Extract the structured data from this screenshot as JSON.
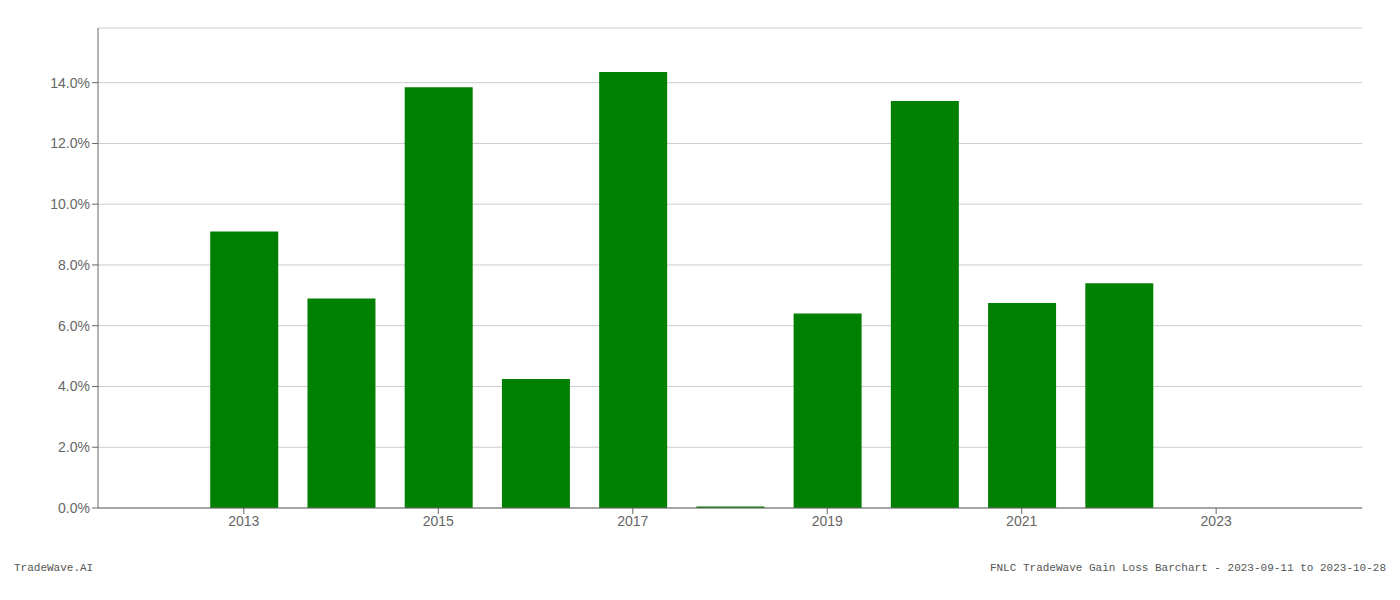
{
  "chart_data": {
    "type": "bar",
    "x": [
      2013,
      2014,
      2015,
      2016,
      2017,
      2018,
      2019,
      2020,
      2021,
      2022,
      2023
    ],
    "values": [
      0.091,
      0.069,
      0.1385,
      0.0425,
      0.1435,
      0.0005,
      0.064,
      0.134,
      0.0675,
      0.074,
      0.0
    ],
    "color": "#008000",
    "xlim": [
      2011.5,
      2024.5
    ],
    "xticks": [
      2013,
      2015,
      2017,
      2019,
      2021,
      2023
    ],
    "ylim": [
      0.0,
      0.158
    ],
    "yticks": [
      {
        "value": 0.0,
        "label": "0.0%"
      },
      {
        "value": 0.02,
        "label": "2.0%"
      },
      {
        "value": 0.04,
        "label": "4.0%"
      },
      {
        "value": 0.06,
        "label": "6.0%"
      },
      {
        "value": 0.08,
        "label": "8.0%"
      },
      {
        "value": 0.1,
        "label": "10.0%"
      },
      {
        "value": 0.12,
        "label": "12.0%"
      },
      {
        "value": 0.14,
        "label": "14.0%"
      }
    ],
    "grid": true,
    "annotations": [
      "TradeWave.AI",
      "FNLC TradeWave Gain Loss Barchart - 2023-09-11 to 2023-10-28"
    ]
  }
}
